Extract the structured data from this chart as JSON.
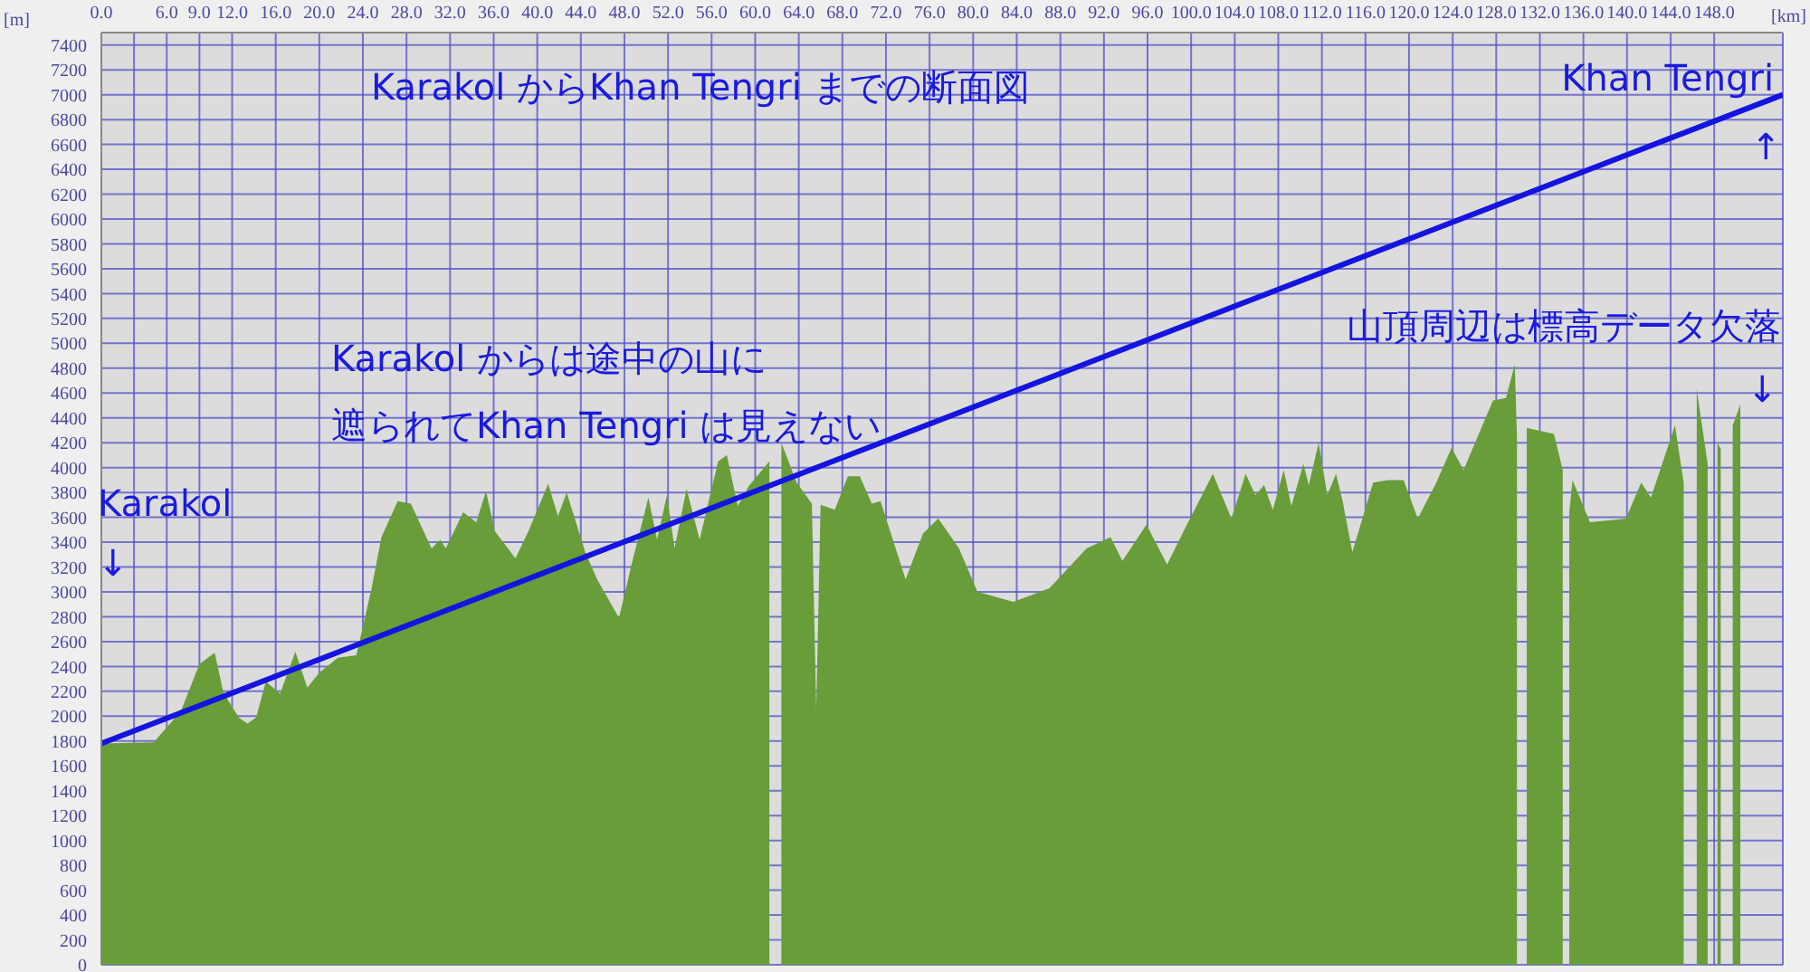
{
  "chart_data": {
    "type": "area",
    "title": "Karakol からKhan Tengri までの断面図",
    "xlabel": "[km]",
    "ylabel": "[m]",
    "xlim": [
      0,
      154.3
    ],
    "ylim": [
      0,
      7500
    ],
    "xticks": [
      {
        "value": 0,
        "label": "0.0"
      },
      {
        "value": 3,
        "label": null
      },
      {
        "value": 6,
        "label": "6.0"
      },
      {
        "value": 9,
        "label": "9.0"
      },
      {
        "value": 12,
        "label": "12.0"
      },
      {
        "value": 16,
        "label": "16.0"
      },
      {
        "value": 20,
        "label": "20.0"
      },
      {
        "value": 24,
        "label": "24.0"
      },
      {
        "value": 28,
        "label": "28.0"
      },
      {
        "value": 32,
        "label": "32.0"
      },
      {
        "value": 36,
        "label": "36.0"
      },
      {
        "value": 40,
        "label": "40.0"
      },
      {
        "value": 44,
        "label": "44.0"
      },
      {
        "value": 48,
        "label": "48.0"
      },
      {
        "value": 52,
        "label": "52.0"
      },
      {
        "value": 56,
        "label": "56.0"
      },
      {
        "value": 60,
        "label": "60.0"
      },
      {
        "value": 64,
        "label": "64.0"
      },
      {
        "value": 68,
        "label": "68.0"
      },
      {
        "value": 72,
        "label": "72.0"
      },
      {
        "value": 76,
        "label": "76.0"
      },
      {
        "value": 80,
        "label": "80.0"
      },
      {
        "value": 84,
        "label": "84.0"
      },
      {
        "value": 88,
        "label": "88.0"
      },
      {
        "value": 92,
        "label": "92.0"
      },
      {
        "value": 96,
        "label": "96.0"
      },
      {
        "value": 100,
        "label": "100.0"
      },
      {
        "value": 104,
        "label": "104.0"
      },
      {
        "value": 108,
        "label": "108.0"
      },
      {
        "value": 112,
        "label": "112.0"
      },
      {
        "value": 116,
        "label": "116.0"
      },
      {
        "value": 120,
        "label": "120.0"
      },
      {
        "value": 124,
        "label": "124.0"
      },
      {
        "value": 128,
        "label": "128.0"
      },
      {
        "value": 132,
        "label": "132.0"
      },
      {
        "value": 136,
        "label": "136.0"
      },
      {
        "value": 140,
        "label": "140.0"
      },
      {
        "value": 144,
        "label": "144.0"
      },
      {
        "value": 148,
        "label": "148.0"
      }
    ],
    "yticks": [
      0,
      200,
      400,
      600,
      800,
      1000,
      1200,
      1400,
      1600,
      1800,
      2000,
      2200,
      2400,
      2600,
      2800,
      3000,
      3200,
      3400,
      3600,
      3800,
      4000,
      4200,
      4400,
      4600,
      4800,
      5000,
      5200,
      5400,
      5600,
      5800,
      6000,
      6200,
      6400,
      6600,
      6800,
      7000,
      7200,
      7400
    ],
    "grid": true,
    "marker": "none",
    "series": [
      {
        "color": "#689d3a",
        "x": [
          0,
          4.8,
          7.3,
          9.0,
          10.4,
          11.2,
          12.6,
          13.4,
          14.2,
          15.1,
          16.4,
          17.8,
          18.9,
          20.0,
          21.7,
          23.4,
          24.8,
          25.7,
          27.2,
          28.4,
          30.3,
          31.1,
          31.6,
          33.2,
          34.4,
          35.3,
          36.1,
          38.0,
          39.2,
          41.0,
          41.9,
          42.7,
          44.4,
          45.5,
          47.5,
          48.6,
          50.2,
          51.0,
          51.9,
          52.6,
          53.7,
          54.9,
          56.6,
          57.4,
          58.4,
          59.4,
          61.3,
          61.8,
          62.4,
          63.8,
          65.2,
          65.6,
          66.0,
          67.3,
          68.5,
          69.6,
          70.7,
          71.5,
          73.8,
          75.4,
          76.8,
          78.7,
          80.4,
          83.7,
          87.0,
          90.4,
          92.6,
          93.7,
          95.9,
          97.8,
          99.5,
          102.0,
          103.7,
          105.0,
          105.9,
          106.7,
          107.5,
          108.5,
          109.2,
          110.3,
          110.8,
          111.7,
          112.5,
          113.3,
          113.9,
          114.8,
          116.7,
          118.1,
          119.5,
          120.8,
          122.5,
          123.9,
          125.0,
          126.4,
          127.7,
          128.9,
          129.7,
          129.9,
          130.1,
          130.8,
          133.3,
          134.1,
          134.5,
          134.7,
          135.0,
          136.6,
          139.9,
          141.3,
          142.2,
          144.4,
          145.2,
          145.8,
          146.4,
          147.4,
          148.0,
          148.3,
          148.6,
          148.9,
          149.7,
          150.4
        ],
        "values": [
          1780,
          1790,
          2040,
          2420,
          2510,
          2190,
          1990,
          1940,
          1990,
          2280,
          2180,
          2520,
          2230,
          2350,
          2470,
          2490,
          3030,
          3440,
          3730,
          3710,
          3350,
          3420,
          3350,
          3640,
          3560,
          3810,
          3490,
          3270,
          3490,
          3870,
          3610,
          3800,
          3320,
          3100,
          2790,
          3200,
          3760,
          3420,
          3780,
          3350,
          3830,
          3420,
          4050,
          4100,
          3690,
          3850,
          4050,
          null,
          4200,
          3880,
          3710,
          2050,
          3700,
          3660,
          3930,
          3930,
          3710,
          3730,
          3100,
          3470,
          3590,
          3350,
          3000,
          2920,
          3030,
          3350,
          3440,
          3250,
          3540,
          3220,
          3520,
          3950,
          3590,
          3950,
          3780,
          3860,
          3660,
          3980,
          3690,
          4030,
          3860,
          4200,
          3780,
          3950,
          3730,
          3320,
          3880,
          3900,
          3900,
          3590,
          3880,
          4160,
          3980,
          4270,
          4540,
          4560,
          4830,
          4240,
          null,
          4320,
          4270,
          3980,
          null,
          3640,
          3900,
          3560,
          3590,
          3880,
          3760,
          4340,
          3880,
          null,
          4630,
          4030,
          null,
          4200,
          4150,
          null,
          4340,
          4510
        ]
      },
      {
        "type": "line",
        "color": "#1414e0",
        "line_style": "solid",
        "x": [
          0,
          154.3
        ],
        "values": [
          1780,
          7000
        ]
      }
    ],
    "annotations": [
      "Karakol",
      "↓",
      "Khan Tengri",
      "↑",
      "Karakol からは途中の山に",
      "遮られてKhan Tengri は見えない",
      "山頂周辺は標高データ欠落",
      "↓"
    ]
  }
}
